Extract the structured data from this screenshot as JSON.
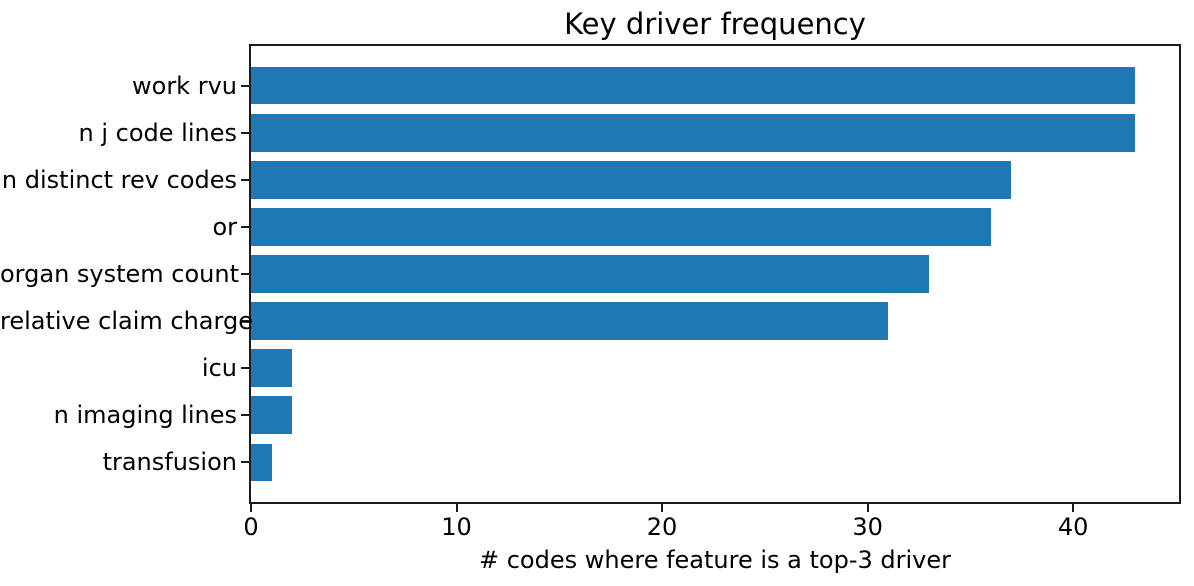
{
  "chart_data": {
    "type": "bar",
    "orientation": "horizontal",
    "title": "Key driver frequency",
    "categories": [
      "work rvu",
      "n j code lines",
      "n distinct rev codes",
      "or",
      "organ system count",
      "relative claim charge",
      "icu",
      "n imaging lines",
      "transfusion"
    ],
    "values": [
      43,
      43,
      37,
      36,
      33,
      31,
      2,
      2,
      1
    ],
    "xlabel": "# codes where feature is a top-3 driver",
    "xticks": [
      0,
      10,
      20,
      30,
      40
    ],
    "xlim": [
      0,
      45.15
    ],
    "bar_color": "#1f77b4",
    "axis_color": "#1a1a1a",
    "text_color": "#000000",
    "background_color": "#ffffff",
    "grid": false,
    "legend": null
  }
}
